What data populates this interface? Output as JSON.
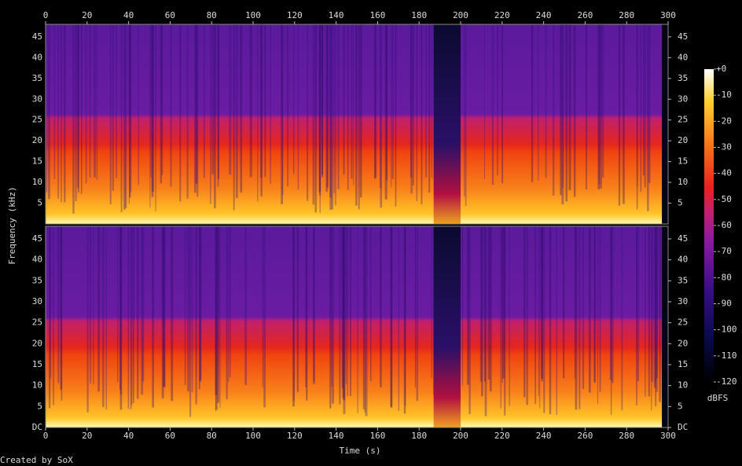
{
  "chart_data": {
    "type": "spectrogram",
    "xlabel": "Time (s)",
    "ylabel": "Frequency (kHz)",
    "credit": "Created by SoX",
    "xlim": [
      0,
      300
    ],
    "xticks": [
      0,
      20,
      40,
      60,
      80,
      100,
      120,
      140,
      160,
      180,
      200,
      220,
      240,
      260,
      280,
      300
    ],
    "ylim": [
      0,
      48
    ],
    "panels": [
      {
        "yticks": [
          5,
          10,
          15,
          20,
          25,
          30,
          35,
          40,
          45
        ]
      },
      {
        "yticks": [
          {
            "value": 0,
            "label": "DC"
          },
          5,
          10,
          15,
          20,
          25,
          30,
          35,
          40,
          45
        ]
      }
    ],
    "colorbar": {
      "label": "dBFS",
      "zlim": [
        -120,
        0
      ],
      "zticks": [
        {
          "value": 0,
          "label": "+0"
        },
        -10,
        -20,
        -30,
        -40,
        -50,
        -60,
        -70,
        -80,
        -90,
        -100,
        -110,
        -120
      ]
    }
  }
}
